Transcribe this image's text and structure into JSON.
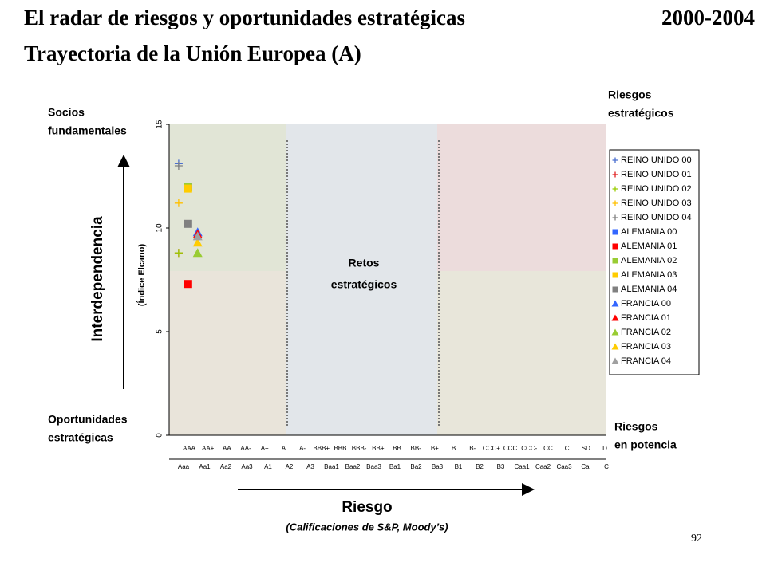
{
  "slide": {
    "title": "El radar de riesgos y oportunidades estratégicas",
    "years": "2000-2004",
    "subtitle": "Trayectoria de la Unión Europea (A)",
    "page_number": "92",
    "corners": {
      "top_left": [
        "Socios",
        "fundamentales"
      ],
      "top_right": [
        "Riesgos",
        "estratégicos"
      ],
      "bottom_left": [
        "Oportunidades",
        "estratégicas"
      ],
      "bottom_right": [
        "Riesgos",
        "en potencia"
      ],
      "center": [
        "Retos",
        "estratégicos"
      ]
    },
    "y_axis_title": "Interdependencia",
    "x_axis_title": "Riesgo",
    "x_axis_subtitle": "(Calificaciones de S&P, Moody’s)"
  },
  "chart_data": {
    "type": "scatter",
    "ylabel": "(Índice Elcano)",
    "sp_ratings": [
      "AAA",
      "AA+",
      "AA",
      "AA-",
      "A+",
      "A",
      "A-",
      "BBB+",
      "BBB",
      "BBB-",
      "BB+",
      "BB",
      "BB-",
      "B+",
      "B",
      "B-",
      "CCC+",
      "CCC",
      "CCC-",
      "CC",
      "C",
      "SD",
      "D"
    ],
    "moodys_ratings": [
      "Aaa",
      "Aa1",
      "Aa2",
      "Aa3",
      "A1",
      "A2",
      "A3",
      "Baa1",
      "Baa2",
      "Baa3",
      "Ba1",
      "Ba2",
      "Ba3",
      "B1",
      "B2",
      "B3",
      "Caa1",
      "Caa2",
      "Caa3",
      "Ca",
      "C"
    ],
    "xlim": [
      0.5,
      23.5
    ],
    "ylim": [
      0,
      15
    ],
    "yticks": [
      0,
      5,
      10,
      15
    ],
    "series": [
      {
        "name": "REINO UNIDO 00",
        "color": "#4a6fd0",
        "marker": "plus",
        "x": [
          1
        ],
        "values": [
          13.1
        ]
      },
      {
        "name": "REINO UNIDO 01",
        "color": "#e02020",
        "marker": "plus",
        "x": [
          1
        ],
        "values": [
          8.8
        ]
      },
      {
        "name": "REINO UNIDO 02",
        "color": "#99cc00",
        "marker": "plus",
        "x": [
          1
        ],
        "values": [
          8.8
        ]
      },
      {
        "name": "REINO UNIDO 03",
        "color": "#ffc000",
        "marker": "plus",
        "x": [
          1
        ],
        "values": [
          11.2
        ]
      },
      {
        "name": "REINO UNIDO 04",
        "color": "#808080",
        "marker": "plus",
        "x": [
          1
        ],
        "values": [
          13.0
        ]
      },
      {
        "name": "ALEMANIA 00",
        "color": "#3366ff",
        "marker": "square",
        "x": [
          1.5
        ],
        "values": [
          12.0
        ]
      },
      {
        "name": "ALEMANIA 01",
        "color": "#ff0000",
        "marker": "square",
        "x": [
          1.5
        ],
        "values": [
          7.3
        ]
      },
      {
        "name": "ALEMANIA 02",
        "color": "#99cc33",
        "marker": "square",
        "x": [
          1.5
        ],
        "values": [
          12.0
        ]
      },
      {
        "name": "ALEMANIA 03",
        "color": "#ffcc00",
        "marker": "square",
        "x": [
          1.5
        ],
        "values": [
          11.9
        ]
      },
      {
        "name": "ALEMANIA 04",
        "color": "#808080",
        "marker": "square",
        "x": [
          1.5
        ],
        "values": [
          10.2
        ]
      },
      {
        "name": "FRANCIA 00",
        "color": "#3366ff",
        "marker": "triangle",
        "x": [
          2
        ],
        "values": [
          9.8
        ]
      },
      {
        "name": "FRANCIA 01",
        "color": "#ff0000",
        "marker": "triangle",
        "x": [
          2
        ],
        "values": [
          9.7
        ]
      },
      {
        "name": "FRANCIA 02",
        "color": "#99cc33",
        "marker": "triangle",
        "x": [
          2
        ],
        "values": [
          8.8
        ]
      },
      {
        "name": "FRANCIA 03",
        "color": "#ffcc00",
        "marker": "triangle",
        "x": [
          2
        ],
        "values": [
          9.3
        ]
      },
      {
        "name": "FRANCIA 04",
        "color": "#a0a0a0",
        "marker": "triangle",
        "x": [
          2
        ],
        "values": [
          9.6
        ]
      }
    ]
  }
}
